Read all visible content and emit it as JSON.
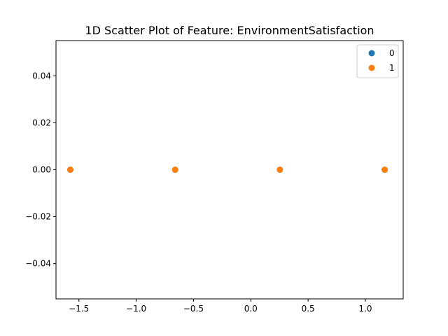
{
  "chart_data": {
    "type": "scatter",
    "title": "1D Scatter Plot of Feature: EnvironmentSatisfaction",
    "xlabel": "",
    "ylabel": "",
    "xlim": [
      -1.7,
      1.33
    ],
    "ylim": [
      -0.055,
      0.055
    ],
    "x_ticks": [
      -1.5,
      -1.0,
      -0.5,
      0.0,
      0.5,
      1.0
    ],
    "x_tick_labels": [
      "−1.5",
      "−1.0",
      "−0.5",
      "0.0",
      "0.5",
      "1.0"
    ],
    "y_ticks": [
      -0.04,
      -0.02,
      0.0,
      0.02,
      0.04
    ],
    "y_tick_labels": [
      "−0.04",
      "−0.02",
      "0.00",
      "0.02",
      "0.04"
    ],
    "grid": false,
    "legend_position": "top-right",
    "series": [
      {
        "name": "0",
        "color": "#1f77b4",
        "x": [
          -1.575,
          -0.66,
          0.254,
          1.169
        ],
        "y": [
          0,
          0,
          0,
          0
        ]
      },
      {
        "name": "1",
        "color": "#ff7f0e",
        "x": [
          -1.575,
          -0.66,
          0.254,
          1.169
        ],
        "y": [
          0,
          0,
          0,
          0
        ]
      }
    ]
  }
}
